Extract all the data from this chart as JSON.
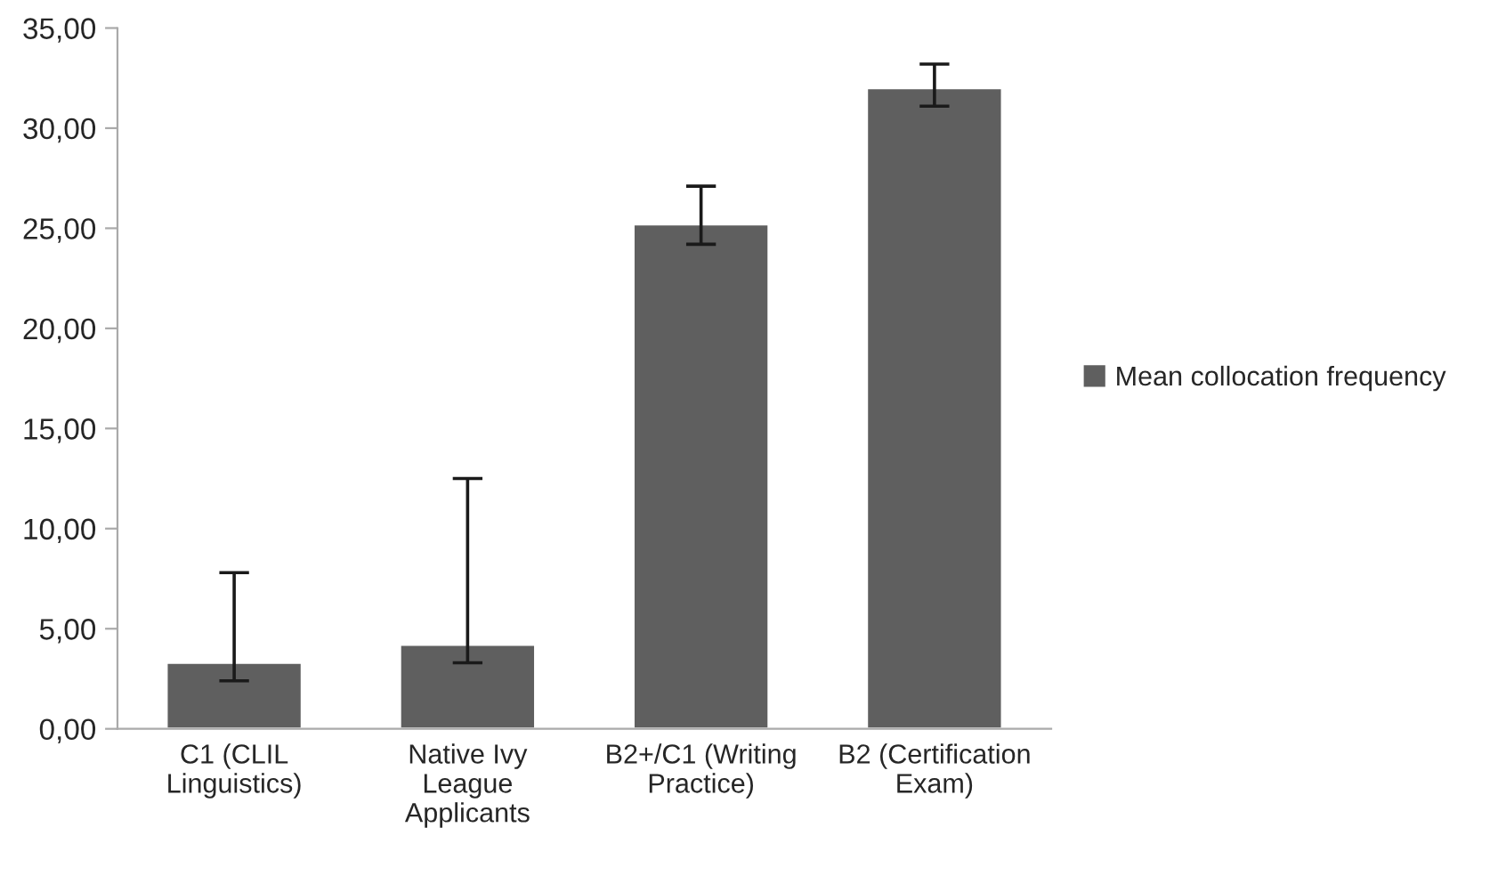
{
  "chart_data": {
    "type": "bar",
    "categories": [
      "C1 (CLIL\nLinguistics)",
      "Native Ivy\nLeague\nApplicants",
      "B2+/C1 (Writing\nPractice)",
      "B2 (Certification\nExam)"
    ],
    "series": [
      {
        "name": "Mean collocation frequency",
        "color": "#5f5f5f",
        "values": [
          3.3,
          4.2,
          25.2,
          32.0
        ],
        "errors": [
          [
            2.4,
            7.8
          ],
          [
            3.3,
            12.5
          ],
          [
            24.2,
            27.1
          ],
          [
            31.1,
            33.2
          ]
        ]
      }
    ],
    "ylim": [
      0,
      35
    ],
    "yticks": [
      {
        "value": 0,
        "label": "0,00"
      },
      {
        "value": 5,
        "label": "5,00"
      },
      {
        "value": 10,
        "label": "10,00"
      },
      {
        "value": 15,
        "label": "15,00"
      },
      {
        "value": 20,
        "label": "20,00"
      },
      {
        "value": 25,
        "label": "25,00"
      },
      {
        "value": 30,
        "label": "30,00"
      },
      {
        "value": 35,
        "label": "35,00"
      }
    ],
    "grid": false,
    "legend": "right"
  }
}
